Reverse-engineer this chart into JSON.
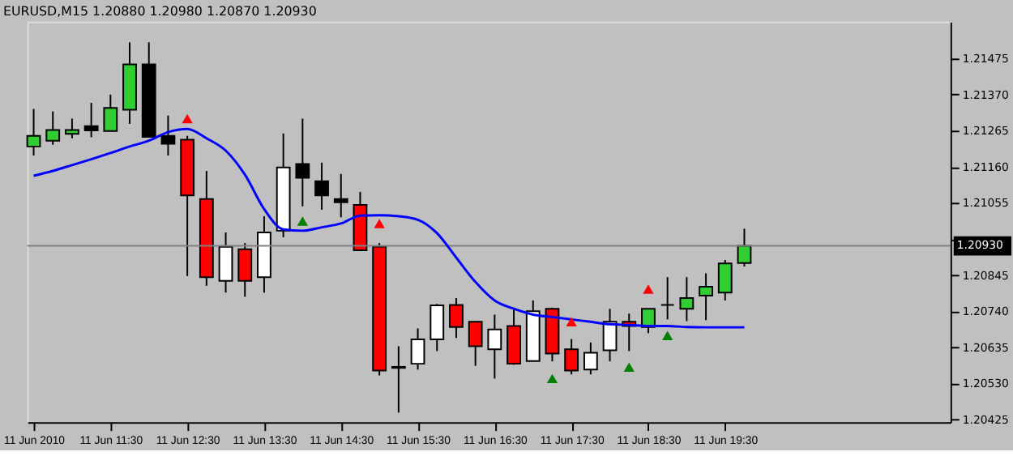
{
  "chart_data": {
    "type": "candlestick",
    "title": "EURUSD,M15  1.20880 1.20980 1.20870 1.20930",
    "x": [
      "2010-06-11T10:30",
      "2010-06-11T10:45",
      "2010-06-11T11:00",
      "2010-06-11T11:15",
      "2010-06-11T11:30",
      "2010-06-11T11:45",
      "2010-06-11T12:00",
      "2010-06-11T12:15",
      "2010-06-11T12:30",
      "2010-06-11T12:45",
      "2010-06-11T13:00",
      "2010-06-11T13:15",
      "2010-06-11T13:30",
      "2010-06-11T13:45",
      "2010-06-11T14:00",
      "2010-06-11T14:15",
      "2010-06-11T14:30",
      "2010-06-11T14:45",
      "2010-06-11T15:00",
      "2010-06-11T15:15",
      "2010-06-11T15:30",
      "2010-06-11T15:45",
      "2010-06-11T16:00",
      "2010-06-11T16:15",
      "2010-06-11T16:30",
      "2010-06-11T16:45",
      "2010-06-11T17:00",
      "2010-06-11T17:15",
      "2010-06-11T17:30",
      "2010-06-11T17:45",
      "2010-06-11T18:00",
      "2010-06-11T18:15",
      "2010-06-11T18:30",
      "2010-06-11T18:45",
      "2010-06-11T19:00",
      "2010-06-11T19:15",
      "2010-06-11T19:30",
      "2010-06-11T19:45"
    ],
    "ohlc": [
      [
        1.21219,
        1.21328,
        1.21193,
        1.2125
      ],
      [
        1.21236,
        1.21321,
        1.21224,
        1.21267
      ],
      [
        1.21256,
        1.213,
        1.21243,
        1.21267
      ],
      [
        1.21278,
        1.21346,
        1.21246,
        1.21266
      ],
      [
        1.21264,
        1.2137,
        1.21264,
        1.21331
      ],
      [
        1.21326,
        1.21522,
        1.21285,
        1.21458
      ],
      [
        1.21458,
        1.21522,
        1.21247,
        1.21247
      ],
      [
        1.2125,
        1.21309,
        1.21193,
        1.21227
      ],
      [
        1.21239,
        1.2125,
        1.20842,
        1.21077
      ],
      [
        1.21066,
        1.21148,
        1.20814,
        1.20839
      ],
      [
        1.20828,
        1.20969,
        1.20794,
        1.20927
      ],
      [
        1.2092,
        1.20938,
        1.20782,
        1.20828
      ],
      [
        1.20839,
        1.21016,
        1.20794,
        1.20969
      ],
      [
        1.20974,
        1.21257,
        1.20955,
        1.21158
      ],
      [
        1.21168,
        1.213,
        1.21045,
        1.21128
      ],
      [
        1.21118,
        1.21172,
        1.21035,
        1.21077
      ],
      [
        1.21066,
        1.21139,
        1.21013,
        1.21057
      ],
      [
        1.21049,
        1.21087,
        1.20917,
        1.20917
      ],
      [
        1.20928,
        1.20938,
        1.20553,
        1.20567
      ],
      [
        1.20578,
        1.20638,
        1.20445,
        1.20575
      ],
      [
        1.20587,
        1.2069,
        1.2057,
        1.20658
      ],
      [
        1.20658,
        1.20761,
        1.20624,
        1.20757
      ],
      [
        1.20758,
        1.20778,
        1.20662,
        1.20694
      ],
      [
        1.20709,
        1.20711,
        1.20581,
        1.20638
      ],
      [
        1.20629,
        1.2073,
        1.20544,
        1.20687
      ],
      [
        1.20697,
        1.20744,
        1.20584,
        1.20587
      ],
      [
        1.20595,
        1.20771,
        1.20594,
        1.2074
      ],
      [
        1.20747,
        1.2075,
        1.20594,
        1.20617
      ],
      [
        1.20629,
        1.20659,
        1.20556,
        1.20567
      ],
      [
        1.2057,
        1.20649,
        1.20556,
        1.20619
      ],
      [
        1.20626,
        1.20747,
        1.20594,
        1.20709
      ],
      [
        1.20709,
        1.20733,
        1.20624,
        1.20697
      ],
      [
        1.20694,
        1.20747,
        1.20676,
        1.20747
      ],
      [
        1.20758,
        1.20839,
        1.20716,
        1.20758
      ],
      [
        1.20747,
        1.20839,
        1.20711,
        1.20778
      ],
      [
        1.20785,
        1.2085,
        1.20714,
        1.20811
      ],
      [
        1.20794,
        1.20889,
        1.20771,
        1.20879
      ],
      [
        1.2088,
        1.2098,
        1.2087,
        1.2093
      ]
    ],
    "colors": [
      "#32cd32",
      "#32cd32",
      "#32cd32",
      "#000000",
      "#32cd32",
      "#32cd32",
      "#000000",
      "#000000",
      "#ff0000",
      "#ff0000",
      "#ffffff",
      "#ff0000",
      "#ffffff",
      "#ffffff",
      "#000000",
      "#000000",
      "#000000",
      "#ff0000",
      "#ff0000",
      "#000000",
      "#ffffff",
      "#ffffff",
      "#ff0000",
      "#ff0000",
      "#ffffff",
      "#ff0000",
      "#ffffff",
      "#ff0000",
      "#ff0000",
      "#ffffff",
      "#ffffff",
      "#ff0000",
      "#32cd32",
      "#000000",
      "#32cd32",
      "#32cd32",
      "#32cd32",
      "#32cd32"
    ],
    "series": [
      {
        "type": "line",
        "color": "#0000ff",
        "values": [
          1.21134,
          1.21148,
          1.21165,
          1.21182,
          1.212,
          1.21219,
          1.21236,
          1.21261,
          1.2127,
          1.21243,
          1.21207,
          1.21137,
          1.21037,
          1.20978,
          1.20974,
          1.20984,
          1.20995,
          1.21018,
          1.21019,
          1.21016,
          1.21006,
          1.20967,
          1.20896,
          1.20825,
          1.20771,
          1.20747,
          1.2073,
          1.20723,
          1.20716,
          1.20709,
          1.20702,
          1.207,
          1.20697,
          1.20697,
          1.20694,
          1.20693,
          1.20693,
          1.20693
        ]
      },
      {
        "type": "scatter",
        "color": "#ff0000",
        "marker": "triangle",
        "x": [
          "2010-06-11T12:30",
          "2010-06-11T15:00",
          "2010-06-11T17:30",
          "2010-06-11T18:30"
        ],
        "values": [
          1.213,
          1.20995,
          1.20709,
          1.20804
        ]
      },
      {
        "type": "scatter",
        "color": "#008000",
        "marker": "triangle",
        "x": [
          "2010-06-11T14:00",
          "2010-06-11T17:15",
          "2010-06-11T18:15",
          "2010-06-11T18:45"
        ],
        "values": [
          1.21002,
          1.20544,
          1.20577,
          1.20669
        ]
      }
    ],
    "xlim": [
      "2010-06-11T10:25",
      "2010-06-11T22:26"
    ],
    "xticks": [
      {
        "value": "2010-06-11T10:30",
        "label": "11 Jun 2010"
      },
      {
        "value": "2010-06-11T11:30",
        "label": "11 Jun 11:30"
      },
      {
        "value": "2010-06-11T12:30",
        "label": "11 Jun 12:30"
      },
      {
        "value": "2010-06-11T13:30",
        "label": "11 Jun 13:30"
      },
      {
        "value": "2010-06-11T14:30",
        "label": "11 Jun 14:30"
      },
      {
        "value": "2010-06-11T15:30",
        "label": "11 Jun 15:30"
      },
      {
        "value": "2010-06-11T16:30",
        "label": "11 Jun 16:30"
      },
      {
        "value": "2010-06-11T17:30",
        "label": "11 Jun 17:30"
      },
      {
        "value": "2010-06-11T18:30",
        "label": "11 Jun 18:30"
      },
      {
        "value": "2010-06-11T19:30",
        "label": "11 Jun 19:30"
      }
    ],
    "ylim": [
      1.20417,
      1.21582
    ],
    "yticks": [
      1.21475,
      {
        "value": 1.2137,
        "label": "1.21370"
      },
      1.21265,
      {
        "value": 1.2116,
        "label": "1.21160"
      },
      1.21055,
      {
        "value": 1.2095,
        "label": null
      },
      1.20845,
      {
        "value": 1.2074,
        "label": "1.20740"
      },
      1.20635,
      {
        "value": 1.2053,
        "label": "1.20530"
      },
      1.20425
    ],
    "ref_lines": [
      {
        "axis": "y",
        "value": 1.2093,
        "label": "1.20930",
        "color": "#808080"
      }
    ],
    "grid": false
  }
}
